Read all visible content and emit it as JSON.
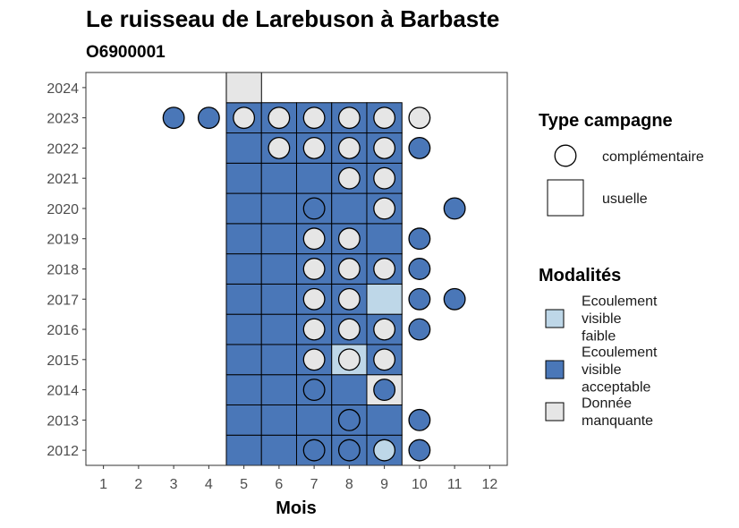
{
  "chart_data": {
    "type": "heatmap",
    "title": "Le ruisseau de Larebuson à Barbaste",
    "subtitle": "O6900001",
    "xlabel": "Mois",
    "ylabel": "",
    "x_ticks": [
      "1",
      "2",
      "3",
      "4",
      "5",
      "6",
      "7",
      "8",
      "9",
      "10",
      "11",
      "12"
    ],
    "y_ticks": [
      "2012",
      "2013",
      "2014",
      "2015",
      "2016",
      "2017",
      "2018",
      "2019",
      "2020",
      "2021",
      "2022",
      "2023",
      "2024"
    ],
    "xlim": [
      0.5,
      12.5
    ],
    "ylim": [
      2011.5,
      2024.5
    ],
    "grid": false,
    "colors": {
      "faible": "#bed7e8",
      "acceptable": "#4a77b8",
      "manquante": "#e6e6e6",
      "border": "#000000"
    },
    "cells": [
      {
        "year": 2012,
        "month": 5,
        "type": "usuelle",
        "modalite": "acceptable"
      },
      {
        "year": 2012,
        "month": 6,
        "type": "usuelle",
        "modalite": "acceptable"
      },
      {
        "year": 2012,
        "month": 7,
        "type": "usuelle",
        "modalite": "acceptable"
      },
      {
        "year": 2012,
        "month": 8,
        "type": "usuelle",
        "modalite": "acceptable"
      },
      {
        "year": 2012,
        "month": 9,
        "type": "usuelle",
        "modalite": "acceptable"
      },
      {
        "year": 2013,
        "month": 5,
        "type": "usuelle",
        "modalite": "acceptable"
      },
      {
        "year": 2013,
        "month": 6,
        "type": "usuelle",
        "modalite": "acceptable"
      },
      {
        "year": 2013,
        "month": 7,
        "type": "usuelle",
        "modalite": "acceptable"
      },
      {
        "year": 2013,
        "month": 8,
        "type": "usuelle",
        "modalite": "acceptable"
      },
      {
        "year": 2013,
        "month": 9,
        "type": "usuelle",
        "modalite": "acceptable"
      },
      {
        "year": 2014,
        "month": 5,
        "type": "usuelle",
        "modalite": "acceptable"
      },
      {
        "year": 2014,
        "month": 6,
        "type": "usuelle",
        "modalite": "acceptable"
      },
      {
        "year": 2014,
        "month": 7,
        "type": "usuelle",
        "modalite": "acceptable"
      },
      {
        "year": 2014,
        "month": 8,
        "type": "usuelle",
        "modalite": "acceptable"
      },
      {
        "year": 2014,
        "month": 9,
        "type": "usuelle",
        "modalite": "manquante"
      },
      {
        "year": 2015,
        "month": 5,
        "type": "usuelle",
        "modalite": "acceptable"
      },
      {
        "year": 2015,
        "month": 6,
        "type": "usuelle",
        "modalite": "acceptable"
      },
      {
        "year": 2015,
        "month": 7,
        "type": "usuelle",
        "modalite": "acceptable"
      },
      {
        "year": 2015,
        "month": 8,
        "type": "usuelle",
        "modalite": "faible"
      },
      {
        "year": 2015,
        "month": 9,
        "type": "usuelle",
        "modalite": "acceptable"
      },
      {
        "year": 2016,
        "month": 5,
        "type": "usuelle",
        "modalite": "acceptable"
      },
      {
        "year": 2016,
        "month": 6,
        "type": "usuelle",
        "modalite": "acceptable"
      },
      {
        "year": 2016,
        "month": 7,
        "type": "usuelle",
        "modalite": "acceptable"
      },
      {
        "year": 2016,
        "month": 8,
        "type": "usuelle",
        "modalite": "acceptable"
      },
      {
        "year": 2016,
        "month": 9,
        "type": "usuelle",
        "modalite": "acceptable"
      },
      {
        "year": 2017,
        "month": 5,
        "type": "usuelle",
        "modalite": "acceptable"
      },
      {
        "year": 2017,
        "month": 6,
        "type": "usuelle",
        "modalite": "acceptable"
      },
      {
        "year": 2017,
        "month": 7,
        "type": "usuelle",
        "modalite": "acceptable"
      },
      {
        "year": 2017,
        "month": 8,
        "type": "usuelle",
        "modalite": "acceptable"
      },
      {
        "year": 2017,
        "month": 9,
        "type": "usuelle",
        "modalite": "faible"
      },
      {
        "year": 2018,
        "month": 5,
        "type": "usuelle",
        "modalite": "acceptable"
      },
      {
        "year": 2018,
        "month": 6,
        "type": "usuelle",
        "modalite": "acceptable"
      },
      {
        "year": 2018,
        "month": 7,
        "type": "usuelle",
        "modalite": "acceptable"
      },
      {
        "year": 2018,
        "month": 8,
        "type": "usuelle",
        "modalite": "acceptable"
      },
      {
        "year": 2018,
        "month": 9,
        "type": "usuelle",
        "modalite": "acceptable"
      },
      {
        "year": 2019,
        "month": 5,
        "type": "usuelle",
        "modalite": "acceptable"
      },
      {
        "year": 2019,
        "month": 6,
        "type": "usuelle",
        "modalite": "acceptable"
      },
      {
        "year": 2019,
        "month": 7,
        "type": "usuelle",
        "modalite": "acceptable"
      },
      {
        "year": 2019,
        "month": 8,
        "type": "usuelle",
        "modalite": "acceptable"
      },
      {
        "year": 2019,
        "month": 9,
        "type": "usuelle",
        "modalite": "acceptable"
      },
      {
        "year": 2020,
        "month": 5,
        "type": "usuelle",
        "modalite": "acceptable"
      },
      {
        "year": 2020,
        "month": 6,
        "type": "usuelle",
        "modalite": "acceptable"
      },
      {
        "year": 2020,
        "month": 7,
        "type": "usuelle",
        "modalite": "acceptable"
      },
      {
        "year": 2020,
        "month": 8,
        "type": "usuelle",
        "modalite": "acceptable"
      },
      {
        "year": 2020,
        "month": 9,
        "type": "usuelle",
        "modalite": "acceptable"
      },
      {
        "year": 2021,
        "month": 5,
        "type": "usuelle",
        "modalite": "acceptable"
      },
      {
        "year": 2021,
        "month": 6,
        "type": "usuelle",
        "modalite": "acceptable"
      },
      {
        "year": 2021,
        "month": 7,
        "type": "usuelle",
        "modalite": "acceptable"
      },
      {
        "year": 2021,
        "month": 8,
        "type": "usuelle",
        "modalite": "acceptable"
      },
      {
        "year": 2021,
        "month": 9,
        "type": "usuelle",
        "modalite": "acceptable"
      },
      {
        "year": 2022,
        "month": 5,
        "type": "usuelle",
        "modalite": "acceptable"
      },
      {
        "year": 2022,
        "month": 6,
        "type": "usuelle",
        "modalite": "acceptable"
      },
      {
        "year": 2022,
        "month": 7,
        "type": "usuelle",
        "modalite": "acceptable"
      },
      {
        "year": 2022,
        "month": 8,
        "type": "usuelle",
        "modalite": "acceptable"
      },
      {
        "year": 2022,
        "month": 9,
        "type": "usuelle",
        "modalite": "acceptable"
      },
      {
        "year": 2023,
        "month": 5,
        "type": "usuelle",
        "modalite": "acceptable"
      },
      {
        "year": 2023,
        "month": 6,
        "type": "usuelle",
        "modalite": "acceptable"
      },
      {
        "year": 2023,
        "month": 7,
        "type": "usuelle",
        "modalite": "acceptable"
      },
      {
        "year": 2023,
        "month": 8,
        "type": "usuelle",
        "modalite": "acceptable"
      },
      {
        "year": 2023,
        "month": 9,
        "type": "usuelle",
        "modalite": "acceptable"
      },
      {
        "year": 2024,
        "month": 5,
        "type": "usuelle",
        "modalite": "manquante"
      },
      {
        "year": 2012,
        "month": 7,
        "type": "complementaire",
        "modalite": "acceptable"
      },
      {
        "year": 2012,
        "month": 8,
        "type": "complementaire",
        "modalite": "acceptable"
      },
      {
        "year": 2012,
        "month": 9,
        "type": "complementaire",
        "modalite": "faible"
      },
      {
        "year": 2012,
        "month": 10,
        "type": "complementaire",
        "modalite": "acceptable"
      },
      {
        "year": 2013,
        "month": 8,
        "type": "complementaire",
        "modalite": "acceptable"
      },
      {
        "year": 2013,
        "month": 10,
        "type": "complementaire",
        "modalite": "acceptable"
      },
      {
        "year": 2014,
        "month": 7,
        "type": "complementaire",
        "modalite": "acceptable"
      },
      {
        "year": 2014,
        "month": 9,
        "type": "complementaire",
        "modalite": "acceptable"
      },
      {
        "year": 2015,
        "month": 7,
        "type": "complementaire",
        "modalite": "manquante"
      },
      {
        "year": 2015,
        "month": 8,
        "type": "complementaire",
        "modalite": "manquante"
      },
      {
        "year": 2015,
        "month": 9,
        "type": "complementaire",
        "modalite": "manquante"
      },
      {
        "year": 2016,
        "month": 7,
        "type": "complementaire",
        "modalite": "manquante"
      },
      {
        "year": 2016,
        "month": 8,
        "type": "complementaire",
        "modalite": "manquante"
      },
      {
        "year": 2016,
        "month": 9,
        "type": "complementaire",
        "modalite": "manquante"
      },
      {
        "year": 2016,
        "month": 10,
        "type": "complementaire",
        "modalite": "acceptable"
      },
      {
        "year": 2017,
        "month": 7,
        "type": "complementaire",
        "modalite": "manquante"
      },
      {
        "year": 2017,
        "month": 8,
        "type": "complementaire",
        "modalite": "manquante"
      },
      {
        "year": 2017,
        "month": 10,
        "type": "complementaire",
        "modalite": "acceptable"
      },
      {
        "year": 2017,
        "month": 11,
        "type": "complementaire",
        "modalite": "acceptable"
      },
      {
        "year": 2018,
        "month": 7,
        "type": "complementaire",
        "modalite": "manquante"
      },
      {
        "year": 2018,
        "month": 8,
        "type": "complementaire",
        "modalite": "manquante"
      },
      {
        "year": 2018,
        "month": 9,
        "type": "complementaire",
        "modalite": "manquante"
      },
      {
        "year": 2018,
        "month": 10,
        "type": "complementaire",
        "modalite": "acceptable"
      },
      {
        "year": 2019,
        "month": 7,
        "type": "complementaire",
        "modalite": "manquante"
      },
      {
        "year": 2019,
        "month": 8,
        "type": "complementaire",
        "modalite": "manquante"
      },
      {
        "year": 2019,
        "month": 10,
        "type": "complementaire",
        "modalite": "acceptable"
      },
      {
        "year": 2020,
        "month": 7,
        "type": "complementaire",
        "modalite": "acceptable"
      },
      {
        "year": 2020,
        "month": 9,
        "type": "complementaire",
        "modalite": "manquante"
      },
      {
        "year": 2020,
        "month": 11,
        "type": "complementaire",
        "modalite": "acceptable"
      },
      {
        "year": 2021,
        "month": 8,
        "type": "complementaire",
        "modalite": "manquante"
      },
      {
        "year": 2021,
        "month": 9,
        "type": "complementaire",
        "modalite": "manquante"
      },
      {
        "year": 2022,
        "month": 6,
        "type": "complementaire",
        "modalite": "manquante"
      },
      {
        "year": 2022,
        "month": 7,
        "type": "complementaire",
        "modalite": "manquante"
      },
      {
        "year": 2022,
        "month": 8,
        "type": "complementaire",
        "modalite": "manquante"
      },
      {
        "year": 2022,
        "month": 9,
        "type": "complementaire",
        "modalite": "manquante"
      },
      {
        "year": 2022,
        "month": 10,
        "type": "complementaire",
        "modalite": "acceptable"
      },
      {
        "year": 2023,
        "month": 3,
        "type": "complementaire",
        "modalite": "acceptable"
      },
      {
        "year": 2023,
        "month": 4,
        "type": "complementaire",
        "modalite": "acceptable"
      },
      {
        "year": 2023,
        "month": 5,
        "type": "complementaire",
        "modalite": "manquante"
      },
      {
        "year": 2023,
        "month": 6,
        "type": "complementaire",
        "modalite": "manquante"
      },
      {
        "year": 2023,
        "month": 7,
        "type": "complementaire",
        "modalite": "manquante"
      },
      {
        "year": 2023,
        "month": 8,
        "type": "complementaire",
        "modalite": "manquante"
      },
      {
        "year": 2023,
        "month": 9,
        "type": "complementaire",
        "modalite": "manquante"
      },
      {
        "year": 2023,
        "month": 10,
        "type": "complementaire",
        "modalite": "manquante"
      }
    ],
    "legend": {
      "position": "right",
      "type_title": "Type campagne",
      "type_items": [
        {
          "key": "complementaire",
          "label": "complémentaire"
        },
        {
          "key": "usuelle",
          "label": "usuelle"
        }
      ],
      "modalite_title": "Modalités",
      "modalite_items": [
        {
          "key": "faible",
          "lines": [
            "Ecoulement",
            "visible",
            "faible"
          ]
        },
        {
          "key": "acceptable",
          "lines": [
            "Ecoulement",
            "visible",
            "acceptable"
          ]
        },
        {
          "key": "manquante",
          "lines": [
            "Donnée",
            "manquante"
          ]
        }
      ]
    }
  }
}
